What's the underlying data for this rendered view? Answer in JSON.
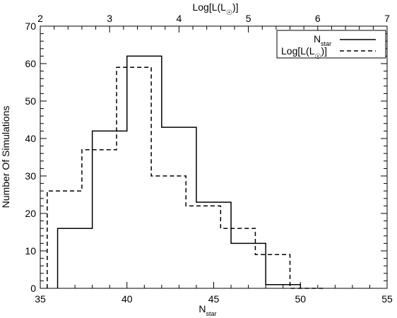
{
  "chart_data": {
    "type": "histogram",
    "xlabel": "N",
    "xlabel_sub": "star",
    "ylabel": "Number Of Simulations",
    "top_xlabel_prefix": "Log[L(L",
    "top_xlabel_suffix": ")]",
    "xlim": [
      35,
      55
    ],
    "ylim": [
      0,
      70
    ],
    "top_xlim": [
      2,
      7
    ],
    "x_ticks": [
      35,
      40,
      45,
      50,
      55
    ],
    "top_ticks": [
      2,
      3,
      4,
      5,
      6,
      7
    ],
    "y_ticks": [
      0,
      10,
      20,
      30,
      40,
      50,
      60,
      70
    ],
    "grid": false,
    "legend_position": "top-right",
    "series": [
      {
        "name": "N",
        "name_sub": "star",
        "style": "solid",
        "axis": "bottom",
        "bin_edges": [
          36,
          38,
          40,
          42,
          44,
          46,
          48,
          50
        ],
        "counts": [
          16,
          42,
          62,
          43,
          23,
          12,
          1
        ]
      },
      {
        "name": "Log[L(L",
        "name_suffix": ")]",
        "style": "dashed",
        "axis": "top",
        "bin_edges": [
          2.1,
          2.6,
          3.1,
          3.6,
          4.1,
          4.6,
          5.1,
          5.6,
          6.1
        ],
        "counts": [
          26,
          37,
          59,
          30,
          22,
          16,
          9,
          0
        ]
      }
    ],
    "colors": {
      "line": "#000000",
      "background": "#ffffff"
    }
  }
}
